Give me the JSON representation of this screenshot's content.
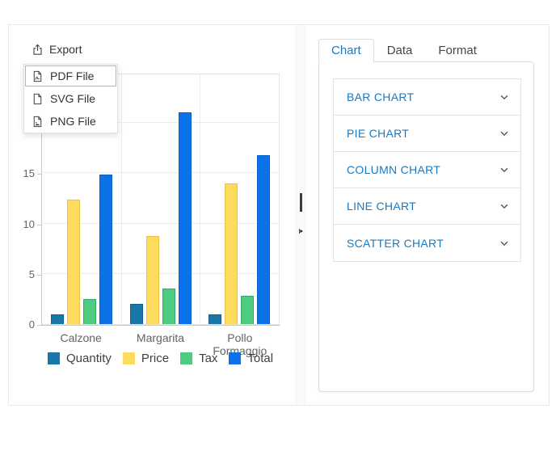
{
  "export": {
    "label": "Export",
    "menu": [
      {
        "label": "PDF File",
        "icon": "pdf-file-icon",
        "focused": true
      },
      {
        "label": "SVG File",
        "icon": "svg-file-icon",
        "focused": false
      },
      {
        "label": "PNG File",
        "icon": "png-file-icon",
        "focused": false
      }
    ]
  },
  "chart_data": {
    "type": "bar",
    "title": "",
    "xlabel": "",
    "ylabel": "",
    "categories": [
      "Calzone",
      "Margarita",
      "Pollo Formaggio"
    ],
    "series": [
      {
        "name": "Quantity",
        "color": "#1876A8",
        "border_color": "#11618a",
        "values": [
          1,
          2,
          1
        ]
      },
      {
        "name": "Price",
        "color": "#FCDB5D",
        "border_color": "#e6c34a",
        "values": [
          12.4,
          8.8,
          14
        ]
      },
      {
        "name": "Tax",
        "color": "#4CCB81",
        "border_color": "#36aa66",
        "values": [
          2.5,
          3.5,
          2.8
        ]
      },
      {
        "name": "Total",
        "color": "#0B72E7",
        "border_color": "#0a5fc4",
        "values": [
          14.9,
          21.1,
          16.8
        ]
      }
    ],
    "ylim": [
      0,
      25
    ],
    "yticks_visible": [
      0,
      5,
      10,
      15
    ],
    "gridline_step": 5,
    "grid": true,
    "legend_position": "bottom"
  },
  "panel": {
    "tabs": [
      {
        "label": "Chart",
        "active": true
      },
      {
        "label": "Data",
        "active": false
      },
      {
        "label": "Format",
        "active": false
      }
    ],
    "chart_types": [
      "BAR CHART",
      "PIE CHART",
      "COLUMN CHART",
      "LINE CHART",
      "SCATTER CHART"
    ]
  },
  "colors": {
    "accent_blue": "#1a79be",
    "text_dark": "#333333",
    "axis_text": "#646464",
    "grid_line": "#ececec",
    "axis_line": "#c9c9c9"
  }
}
